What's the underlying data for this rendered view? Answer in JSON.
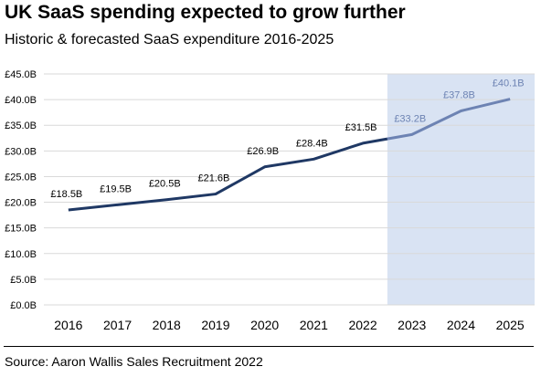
{
  "title": "UK SaaS spending expected to grow further",
  "subtitle": "Historic & forecasted SaaS expenditure 2016-2025",
  "source": "Source: Aaron Wallis Sales Recruitment 2022",
  "chart_data": {
    "type": "line",
    "categories": [
      "2016",
      "2017",
      "2018",
      "2019",
      "2020",
      "2021",
      "2022",
      "2023",
      "2024",
      "2025"
    ],
    "series": [
      {
        "values": [
          18.5,
          19.5,
          20.5,
          21.6,
          26.9,
          28.4,
          31.5,
          33.2,
          37.8,
          40.1
        ],
        "data_labels": [
          "£18.5B",
          "£19.5B",
          "£20.5B",
          "£21.6B",
          "£26.9B",
          "£28.4B",
          "£31.5B",
          "£33.2B",
          "£37.8B",
          "£40.1B"
        ]
      }
    ],
    "forecast_start_category": "2023",
    "ylim": [
      0,
      45
    ],
    "y_ticks": [
      0,
      5,
      10,
      15,
      20,
      25,
      30,
      35,
      40,
      45
    ],
    "y_tick_labels": [
      "£0.0B",
      "£5.0B",
      "£10.0B",
      "£15.0B",
      "£20.0B",
      "£25.0B",
      "£30.0B",
      "£35.0B",
      "£40.0B",
      "£45.0B"
    ],
    "xlabel": "",
    "ylabel": "",
    "grid": true,
    "legend": "none",
    "colors": {
      "historic_line": "#1f3864",
      "forecast_line": "#6d83b3",
      "forecast_band": "#d9e3f3",
      "forecast_label": "#6d83b3",
      "grid": "#d9d9d9"
    }
  }
}
